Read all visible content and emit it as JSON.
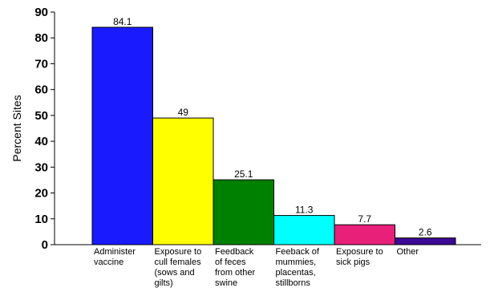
{
  "chart_data": {
    "type": "bar",
    "ylabel": "Percent Sites",
    "ylim": [
      0,
      90
    ],
    "yticks": [
      0,
      10,
      20,
      30,
      40,
      50,
      60,
      70,
      80,
      90
    ],
    "grid": false,
    "legend": "none",
    "categories": [
      [
        "Administer",
        "vaccine"
      ],
      [
        "Exposure to",
        "cull females",
        "(sows and",
        "gilts)"
      ],
      [
        "Feedback",
        "of feces",
        "from other",
        "swine"
      ],
      [
        "Feeback of",
        "mummies,",
        "placentas,",
        "stillborns"
      ],
      [
        "Exposure to",
        "sick pigs"
      ],
      [
        "Other"
      ]
    ],
    "values": [
      84.1,
      49,
      25.1,
      11.3,
      7.7,
      2.6
    ],
    "data_labels": [
      "84.1",
      "49",
      "25.1",
      "11.3",
      "7.7",
      "2.6"
    ],
    "colors": [
      "#1a1aff",
      "#ffff00",
      "#008000",
      "#00ffff",
      "#e8207a",
      "#3b0a96"
    ]
  }
}
